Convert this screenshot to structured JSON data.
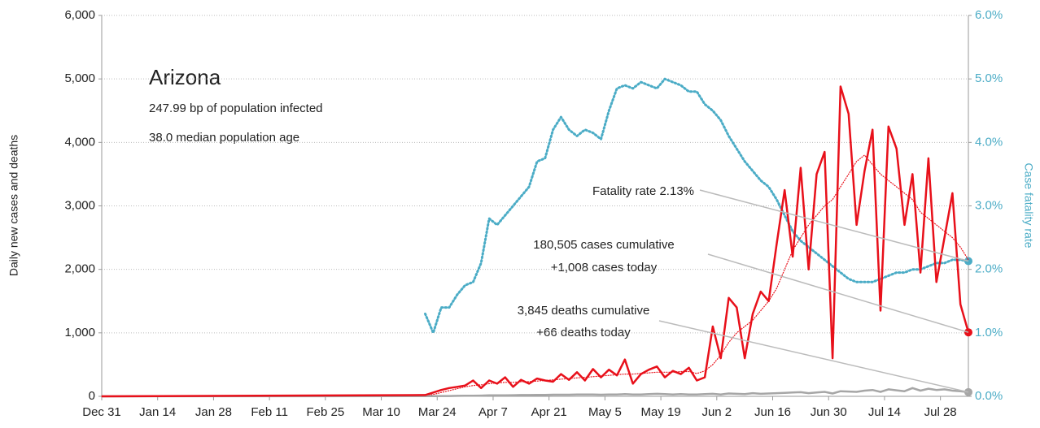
{
  "chart_data": {
    "type": "line",
    "title": "Arizona",
    "annotations": [
      "247.99 bp of population infected",
      "38.0 median population age",
      "Fatality rate 2.13%",
      "180,505 cases cumulative",
      "+1,008 cases today",
      "3,845 deaths cumulative",
      "+66 deaths today"
    ],
    "ylabel": "Daily new cases and deaths",
    "y2label": "Case fatality rate",
    "xlim": [
      0,
      217
    ],
    "xticks": [
      {
        "value": 0,
        "label": "Dec 31"
      },
      {
        "value": 14,
        "label": "Jan 14"
      },
      {
        "value": 28,
        "label": "Jan 28"
      },
      {
        "value": 42,
        "label": "Feb 11"
      },
      {
        "value": 56,
        "label": "Feb 25"
      },
      {
        "value": 70,
        "label": "Mar 10"
      },
      {
        "value": 84,
        "label": "Mar 24"
      },
      {
        "value": 98,
        "label": "Apr 7"
      },
      {
        "value": 112,
        "label": "Apr 21"
      },
      {
        "value": 126,
        "label": "May 5"
      },
      {
        "value": 140,
        "label": "May 19"
      },
      {
        "value": 154,
        "label": "Jun 2"
      },
      {
        "value": 168,
        "label": "Jun 16"
      },
      {
        "value": 182,
        "label": "Jun 30"
      },
      {
        "value": 196,
        "label": "Jul 14"
      },
      {
        "value": 210,
        "label": "Jul 28"
      }
    ],
    "ylim": [
      0,
      6000
    ],
    "yticks": [
      0,
      {
        "value": 1000,
        "label": "1,000"
      },
      {
        "value": 2000,
        "label": "2,000"
      },
      {
        "value": 3000,
        "label": "3,000"
      },
      {
        "value": 4000,
        "label": "4,000"
      },
      {
        "value": 5000,
        "label": "5,000"
      },
      {
        "value": 6000,
        "label": "6,000"
      }
    ],
    "y2lim": [
      0,
      6
    ],
    "y2ticks": [
      {
        "value": 0,
        "label": "0.0%"
      },
      {
        "value": 1,
        "label": "1.0%"
      },
      {
        "value": 2,
        "label": "2.0%"
      },
      {
        "value": 3,
        "label": "3.0%"
      },
      {
        "value": 4,
        "label": "4.0%"
      },
      {
        "value": 5,
        "label": "5.0%"
      },
      {
        "value": 6,
        "label": "6.0%"
      }
    ],
    "grid": true,
    "x": [
      0,
      81,
      83,
      85,
      87,
      89,
      91,
      93,
      95,
      97,
      99,
      101,
      103,
      105,
      107,
      109,
      111,
      113,
      115,
      117,
      119,
      121,
      123,
      125,
      127,
      129,
      131,
      133,
      135,
      137,
      139,
      141,
      143,
      145,
      147,
      149,
      151,
      153,
      155,
      157,
      159,
      161,
      163,
      165,
      167,
      169,
      171,
      173,
      175,
      177,
      179,
      181,
      183,
      185,
      187,
      189,
      191,
      193,
      195,
      197,
      199,
      201,
      203,
      205,
      207,
      209,
      211,
      213,
      215,
      217
    ],
    "series": [
      {
        "color": "#4bacc6",
        "axis": "y2",
        "line_style": "dotted",
        "width": 3,
        "end_marker": true,
        "values": [
          null,
          1.3,
          1.0,
          1.4,
          1.4,
          1.6,
          1.75,
          1.8,
          2.1,
          2.8,
          2.7,
          2.85,
          3.0,
          3.15,
          3.3,
          3.7,
          3.75,
          4.2,
          4.4,
          4.2,
          4.1,
          4.2,
          4.15,
          4.05,
          4.5,
          4.85,
          4.9,
          4.85,
          4.95,
          4.9,
          4.85,
          5.0,
          4.95,
          4.9,
          4.8,
          4.8,
          4.6,
          4.5,
          4.35,
          4.1,
          3.9,
          3.7,
          3.55,
          3.4,
          3.3,
          3.1,
          2.85,
          2.6,
          2.45,
          2.35,
          2.25,
          2.15,
          2.05,
          1.95,
          1.85,
          1.8,
          1.8,
          1.8,
          1.85,
          1.9,
          1.95,
          1.95,
          2.0,
          2.0,
          2.05,
          2.1,
          2.1,
          2.15,
          2.15,
          2.13
        ]
      },
      {
        "color": "#e8101a",
        "line_style": "dotted",
        "width": 1.2,
        "end_marker": false,
        "values": [
          0,
          10,
          30,
          60,
          90,
          120,
          150,
          170,
          180,
          200,
          210,
          220,
          220,
          230,
          230,
          240,
          250,
          260,
          270,
          280,
          290,
          300,
          310,
          320,
          330,
          340,
          350,
          350,
          360,
          370,
          380,
          380,
          380,
          390,
          390,
          360,
          400,
          500,
          650,
          850,
          1000,
          1100,
          1200,
          1350,
          1500,
          1700,
          2000,
          2300,
          2500,
          2700,
          2850,
          3000,
          3100,
          3300,
          3500,
          3700,
          3800,
          3650,
          3500,
          3400,
          3300,
          3200,
          3100,
          2900,
          2800,
          2700,
          2600,
          2500,
          2350,
          2150
        ]
      },
      {
        "color": "#a6a6a6",
        "line_style": "solid",
        "width": 2.5,
        "end_marker": true,
        "values": [
          0,
          2,
          3,
          5,
          5,
          8,
          10,
          10,
          12,
          15,
          15,
          15,
          18,
          20,
          20,
          22,
          22,
          25,
          25,
          25,
          28,
          30,
          30,
          25,
          30,
          28,
          35,
          30,
          30,
          35,
          40,
          35,
          30,
          35,
          30,
          30,
          35,
          40,
          30,
          45,
          40,
          35,
          50,
          40,
          45,
          50,
          55,
          60,
          65,
          50,
          60,
          70,
          45,
          80,
          75,
          70,
          90,
          100,
          70,
          110,
          95,
          80,
          130,
          90,
          120,
          100,
          110,
          90,
          80,
          66
        ]
      },
      {
        "color": "#e8101a",
        "line_style": "solid",
        "width": 2.5,
        "end_marker": true,
        "values": [
          0,
          20,
          60,
          100,
          130,
          150,
          170,
          250,
          130,
          250,
          200,
          300,
          150,
          260,
          200,
          280,
          250,
          230,
          350,
          260,
          380,
          250,
          430,
          300,
          420,
          330,
          580,
          200,
          350,
          420,
          470,
          300,
          400,
          350,
          450,
          250,
          300,
          1100,
          600,
          1550,
          1400,
          600,
          1300,
          1650,
          1500,
          2400,
          3250,
          2200,
          3600,
          2000,
          3500,
          3850,
          600,
          4880,
          4450,
          2700,
          3550,
          4200,
          1350,
          4250,
          3900,
          2700,
          3500,
          1950,
          3750,
          1800,
          2500,
          3200,
          1450,
          1008
        ]
      }
    ]
  }
}
